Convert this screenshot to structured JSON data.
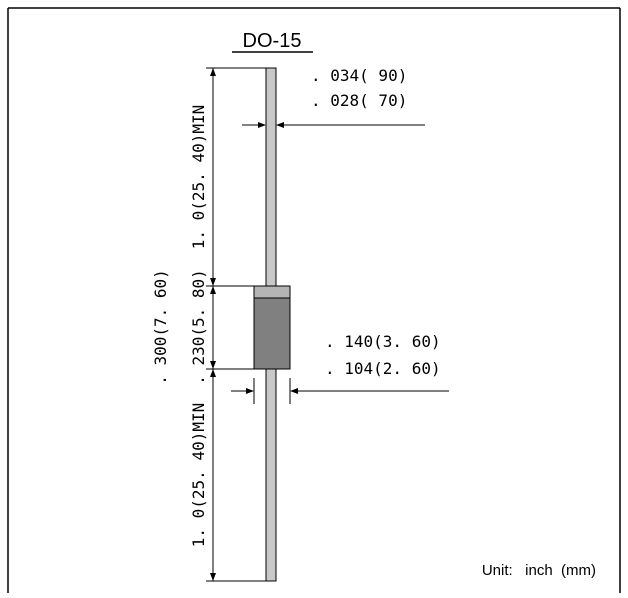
{
  "package_name": "DO-15",
  "dimensions": {
    "lead_diameter_max": ". 034( 90)",
    "lead_diameter_min": ". 028( 70)",
    "top_lead_length": "1. 0(25. 40)MIN",
    "body_length_max": ". 300(7. 60)",
    "body_length_min": ". 230(5. 80)",
    "body_diameter_max": ". 140(3. 60)",
    "body_diameter_min": ". 104(2. 60)",
    "bottom_lead_length": "1. 0(25. 40)MIN"
  },
  "unit_label": "Unit:   inch  (mm)",
  "colors": {
    "lead_fill": "#c8c8c8",
    "body_fill": "#808080",
    "band_fill": "#b4b4b4",
    "line": "#000000"
  }
}
